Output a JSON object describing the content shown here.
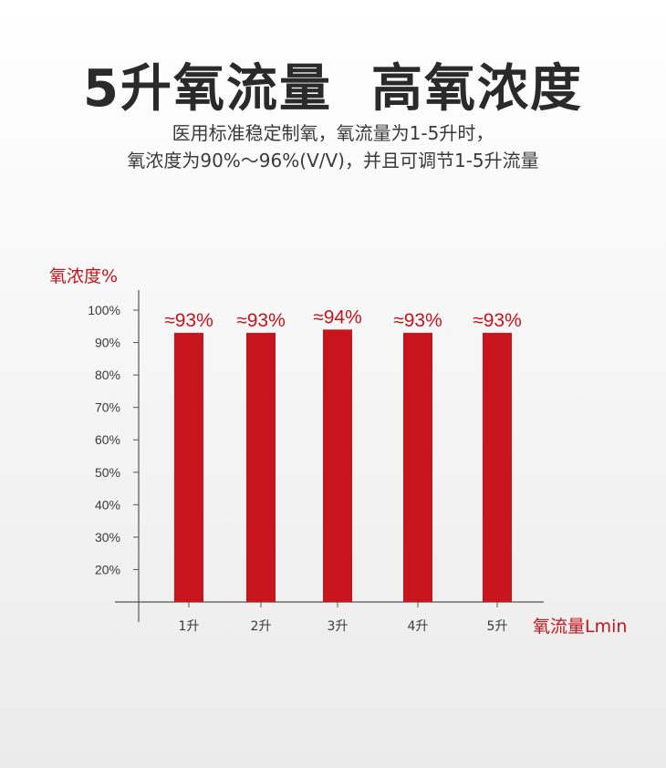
{
  "header": {
    "title": "5升氧流量  高氧浓度",
    "subtitle_line1": "医用标准稳定制氧，氧流量为1-5升时，",
    "subtitle_line2": "氧浓度为90%～96%(V/V)，并且可调节1-5升流量"
  },
  "colors": {
    "bar": "#c8141c",
    "axis": "#555555",
    "accent": "#c8141c"
  },
  "chart_data": {
    "type": "bar",
    "title": "",
    "ylabel": "氧浓度%",
    "xlabel": "氧流量Lmin",
    "categories": [
      "1升",
      "2升",
      "3升",
      "4升",
      "5升"
    ],
    "values": [
      93,
      93,
      94,
      93,
      93
    ],
    "value_labels": [
      "≈93%",
      "≈93%",
      "≈94%",
      "≈93%",
      "≈93%"
    ],
    "yticks": [
      20,
      30,
      40,
      50,
      60,
      70,
      80,
      90,
      100
    ],
    "ytick_labels": [
      "20%",
      "30%",
      "40%",
      "50%",
      "60%",
      "70%",
      "80%",
      "90%",
      "100%"
    ],
    "ylim": [
      10,
      100
    ],
    "grid": false
  }
}
